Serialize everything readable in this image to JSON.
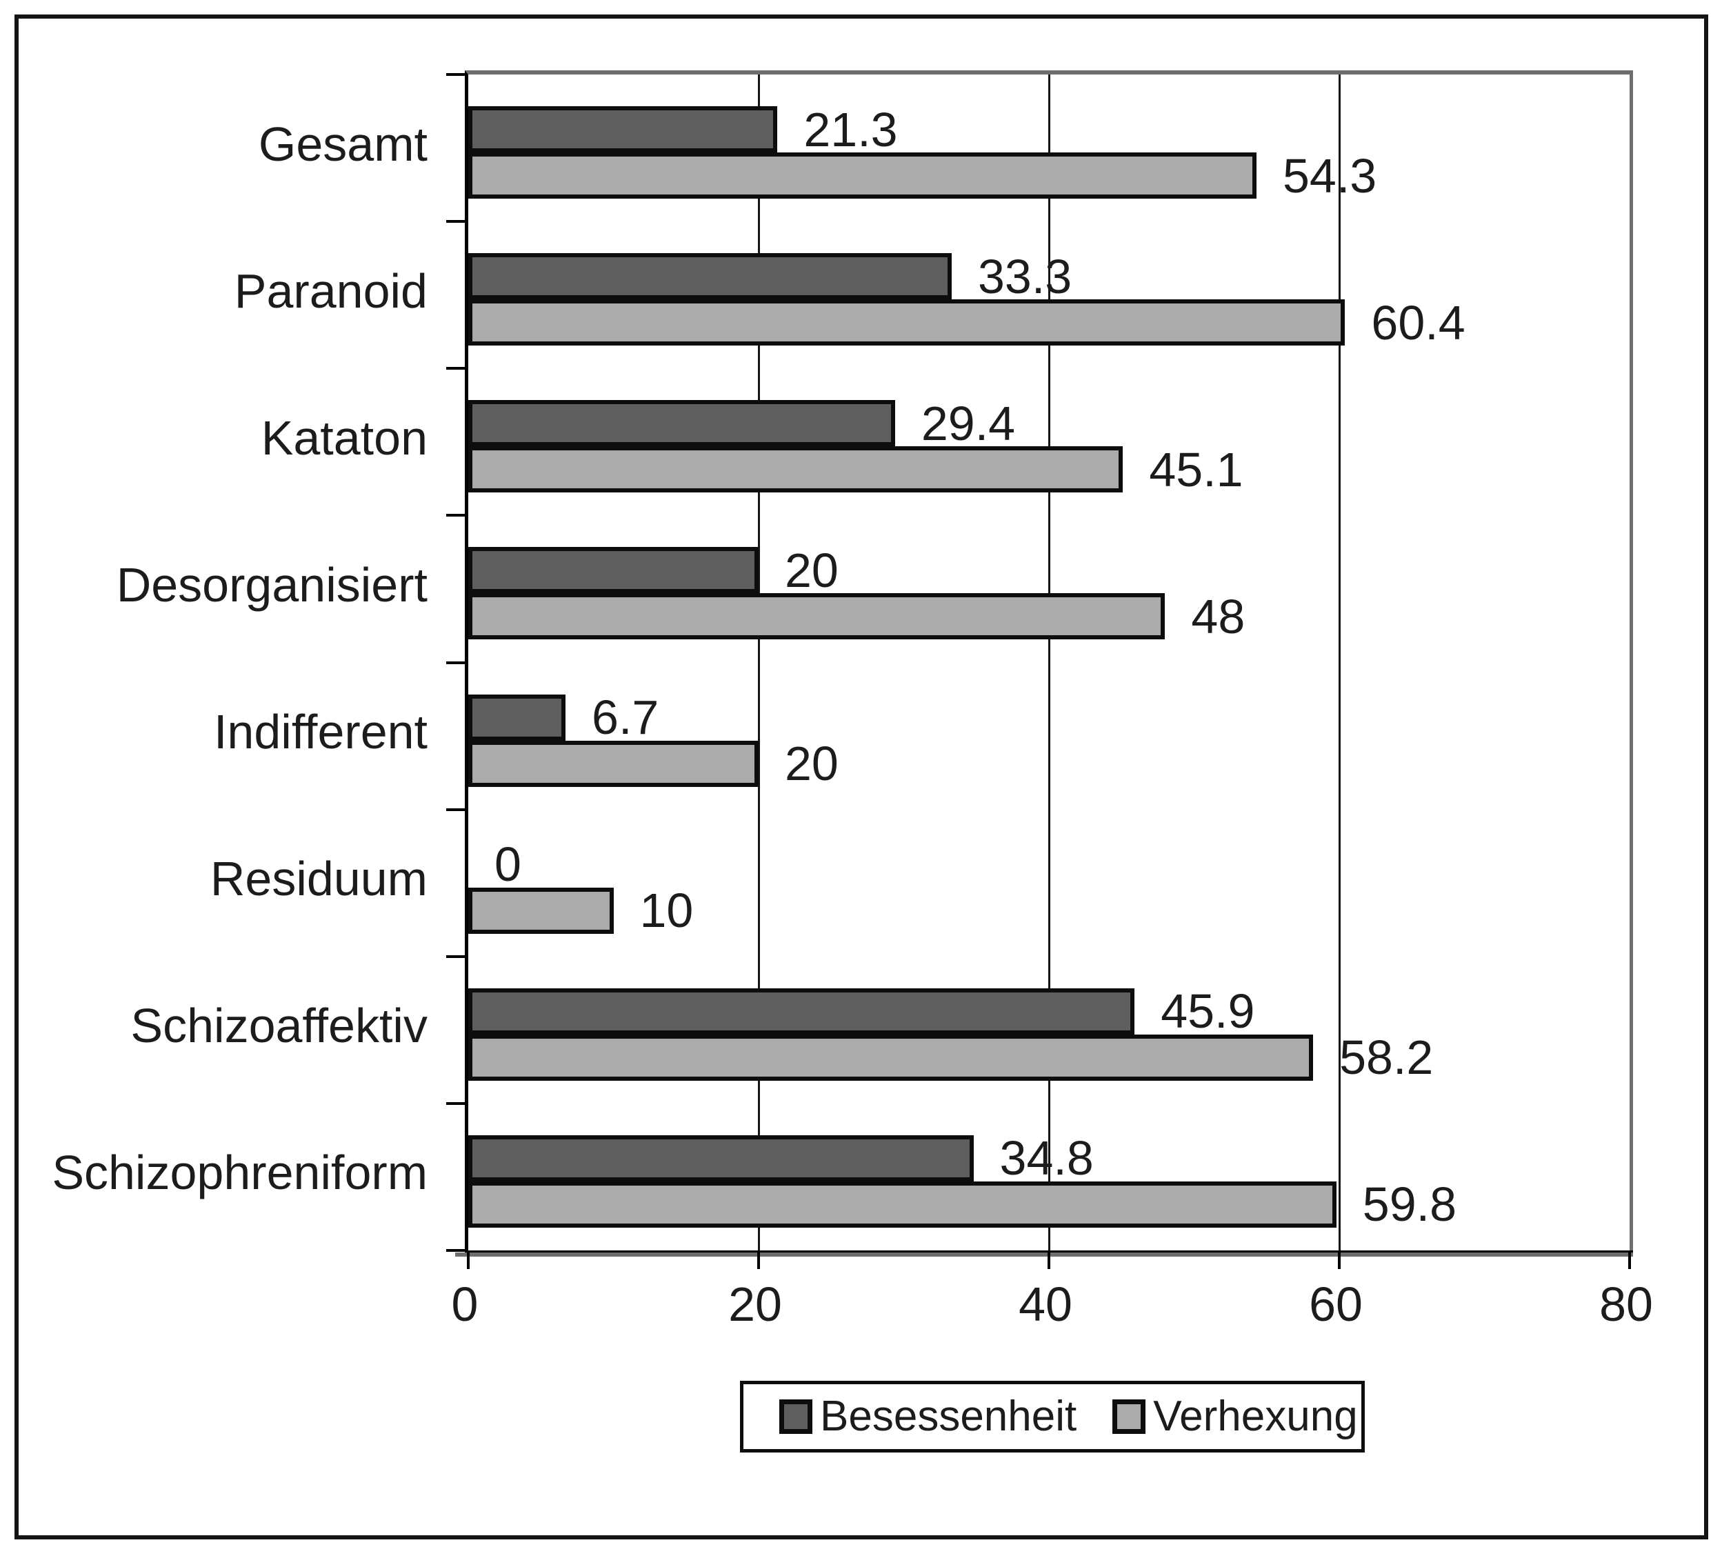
{
  "chart_data": {
    "type": "bar",
    "orientation": "horizontal",
    "title": "",
    "categories": [
      "Gesamt",
      "Paranoid",
      "Kataton",
      "Desorganisiert",
      "Indifferent",
      "Residuum",
      "Schizoaffektiv",
      "Schizophreniform"
    ],
    "series": [
      {
        "name": "Besessenheit",
        "color": "#5e5e5e",
        "values": [
          21.3,
          33.3,
          29.4,
          20,
          6.7,
          0,
          45.9,
          34.8
        ]
      },
      {
        "name": "Verhexung",
        "color": "#ababab",
        "values": [
          54.3,
          60.4,
          45.1,
          48,
          20,
          10,
          58.2,
          59.8
        ]
      }
    ],
    "xlim": [
      0,
      80
    ],
    "x_ticks": [
      0,
      20,
      40,
      60,
      80
    ],
    "x_tick_labels": [
      "0",
      "20",
      "40",
      "60",
      "80"
    ],
    "grid": true,
    "value_labels_shown": true,
    "legend_position": "bottom-center"
  },
  "colors": {
    "bar_border": "#0d0d0d",
    "grid_line": "#161616",
    "axis_shadow": "#6e6e6e",
    "text": "#1c1c1c",
    "background": "#ffffff"
  }
}
